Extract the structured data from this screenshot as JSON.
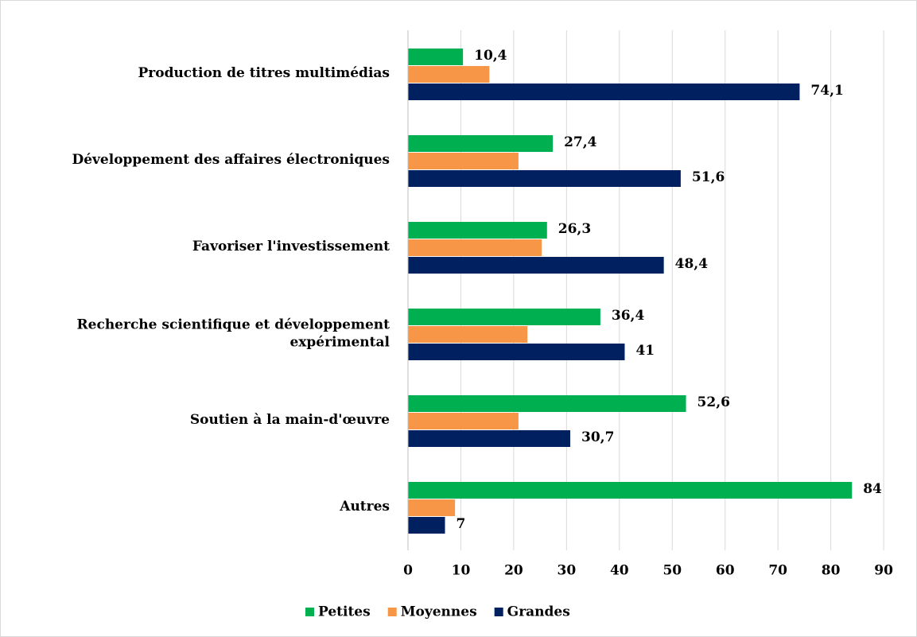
{
  "chart_data": {
    "type": "barh",
    "categories": [
      "Production de titres multimédias",
      "Développement des affaires électroniques",
      "Favoriser l'investissement",
      "Recherche scientifique et développement\nexpérimental",
      "Soutien à la main-d'œuvre",
      "Autres"
    ],
    "series": [
      {
        "name": "Petites",
        "color": "#00b050",
        "values": [
          10.4,
          27.4,
          26.3,
          36.4,
          52.6,
          84
        ],
        "value_labels": [
          "10,4",
          "27,4",
          "26,3",
          "36,4",
          "52,6",
          "84"
        ]
      },
      {
        "name": "Moyennes",
        "color": "#f79646",
        "values": [
          15.4,
          20.9,
          25.3,
          22.6,
          20.9,
          8.9
        ]
      },
      {
        "name": "Grandes",
        "color": "#002060",
        "values": [
          74.1,
          51.6,
          48.4,
          41,
          30.7,
          7
        ],
        "value_labels": [
          "74,1",
          "51,6",
          "48,4",
          "41",
          "30,7",
          "7"
        ]
      }
    ],
    "xlim": [
      0,
      94.5
    ],
    "xticks": [
      0,
      10,
      20,
      30,
      40,
      50,
      60,
      70,
      80,
      90
    ],
    "grid": true,
    "legend": "bottom"
  }
}
